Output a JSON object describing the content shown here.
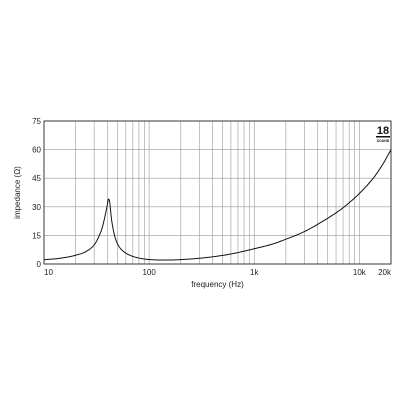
{
  "logo": {
    "text": "18",
    "subtext": "SOUND"
  },
  "chart_data": {
    "type": "line",
    "xscale": "log",
    "xlim": [
      10,
      20000
    ],
    "ylim": [
      0,
      75
    ],
    "xlabel": "frequency (Hz)",
    "ylabel": "impedance (Ω)",
    "xtick_values": [
      10,
      100,
      1000,
      10000,
      20000
    ],
    "xtick_labels": [
      "10",
      "100",
      "1k",
      "10k",
      "20k"
    ],
    "ytick_values": [
      0,
      15,
      30,
      45,
      60,
      75
    ],
    "ytick_labels": [
      "0",
      "15",
      "30",
      "45",
      "60",
      "75"
    ],
    "grid": true,
    "series": [
      {
        "x": [
          10,
          15,
          20,
          25,
          30,
          33,
          36,
          38,
          40,
          41,
          42,
          43,
          44,
          46,
          48,
          52,
          58,
          65,
          75,
          90,
          110,
          130,
          160,
          200,
          300,
          500,
          700,
          1000,
          1500,
          2000,
          3000,
          5000,
          7000,
          10000,
          14000,
          17000,
          20000
        ],
        "y": [
          2.2,
          3.2,
          4.6,
          6.5,
          10,
          14,
          19.5,
          25,
          31,
          34,
          33,
          28,
          23,
          17,
          13,
          9,
          6.3,
          4.7,
          3.5,
          2.6,
          2.2,
          2.1,
          2.1,
          2.3,
          3.0,
          4.5,
          6,
          8,
          10.5,
          13,
          17,
          24,
          29.5,
          37,
          46,
          53,
          60
        ]
      }
    ]
  }
}
